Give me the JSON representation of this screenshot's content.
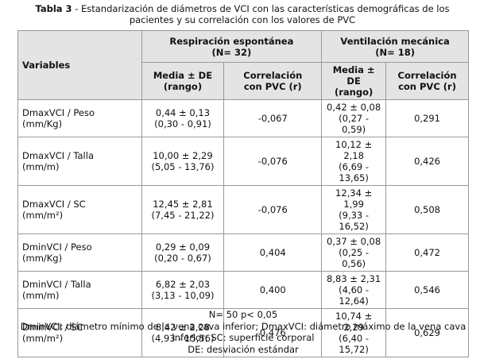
{
  "caption": {
    "label": "Tabla 3",
    "text": "- Estandarización de diámetros de VCI con las características demográficas de los pacientes y su correlación con los valores de PVC"
  },
  "table": {
    "header": {
      "variables": "Variables",
      "groups": [
        {
          "name": "Respiración espontánea",
          "n": "(N= 32)"
        },
        {
          "name": "Ventilación mecánica",
          "n": "(N= 18)"
        }
      ],
      "columns": [
        {
          "line1": "Media ± DE",
          "line2": "(rango)"
        },
        {
          "line1": "Correlación",
          "line2": "con PVC (r)"
        },
        {
          "line1": "Media ± DE",
          "line2": "(rango)"
        },
        {
          "line1": "Correlación",
          "line2": "con PVC (r)"
        }
      ]
    },
    "rows": [
      {
        "variable": "DmaxVCI / Peso",
        "unit": "(mm/Kg)",
        "cells": [
          {
            "mean": "0,44 ± 0,13",
            "range": "(0,30 - 0,91)"
          },
          "-0,067",
          {
            "mean": "0,42 ± 0,08",
            "range": "(0,27 - 0,59)"
          },
          "0,291"
        ]
      },
      {
        "variable": "DmaxVCI / Talla",
        "unit": "(mm/m)",
        "cells": [
          {
            "mean": "10,00 ± 2,29",
            "range": "(5,05 - 13,76)"
          },
          "-0,076",
          {
            "mean": "10,12 ± 2,18",
            "range": "(6,69 - 13,65)"
          },
          "0,426"
        ]
      },
      {
        "variable": "DmaxVCI / SC",
        "unit": "(mm/m²)",
        "cells": [
          {
            "mean": "12,45 ± 2,81",
            "range": "(7,45 - 21,22)"
          },
          "-0,076",
          {
            "mean": "12,34 ± 1,99",
            "range": "(9,33 - 16,52)"
          },
          "0,508"
        ]
      },
      {
        "variable": "DminVCI / Peso",
        "unit": "(mm/Kg)",
        "cells": [
          {
            "mean": "0,29 ± 0,09",
            "range": "(0,20 - 0,67)"
          },
          "0,404",
          {
            "mean": "0,37 ± 0,08",
            "range": "(0,25 - 0,56)"
          },
          "0,472"
        ]
      },
      {
        "variable": "DminVCI / Talla",
        "unit": "(mm/m)",
        "cells": [
          {
            "mean": "6,82 ± 2,03",
            "range": "(3,13 - 10,09)"
          },
          "0,400",
          {
            "mean": "8,83 ± 2,31",
            "range": "(4,60 - 12,64)"
          },
          "0,546"
        ]
      },
      {
        "variable": "DminVCI / SC",
        "unit": "(mm/m²)",
        "cells": [
          {
            "mean": "8,42 ± 2,28",
            "range": "(4,93 - 15,56)"
          },
          "0,476",
          {
            "mean": "10,74 ± 2,29",
            "range": "(6,40 - 15,72)"
          },
          "0,629"
        ]
      }
    ]
  },
  "notes": [
    "N= 50 p< 0,05",
    "DminVCI: diámetro mínimo de la vena cava inferior; DmaxVCI: diámetro máximo de la vena cava inferior; SC: superficie corporal",
    "DE: desviación estándar"
  ]
}
